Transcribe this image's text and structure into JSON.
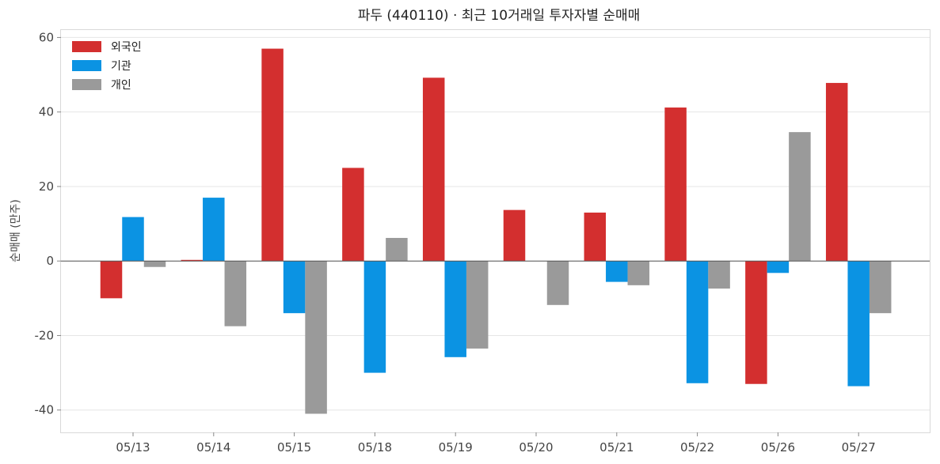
{
  "chart_data": {
    "type": "bar",
    "title": "파두 (440110) · 최근 10거래일 투자자별 순매매",
    "xlabel": "",
    "ylabel": "순매매 (만주)",
    "categories": [
      "05/13",
      "05/14",
      "05/15",
      "05/18",
      "05/19",
      "05/20",
      "05/21",
      "05/22",
      "05/26",
      "05/27"
    ],
    "series": [
      {
        "name": "외국인",
        "color": "#d32f2f",
        "values": [
          -10.0,
          0.3,
          57.0,
          25.0,
          49.2,
          13.7,
          13.0,
          41.2,
          -33.0,
          47.8
        ]
      },
      {
        "name": "기관",
        "color": "#0b93e3",
        "values": [
          11.8,
          17.0,
          -14.0,
          -30.0,
          -25.8,
          0.0,
          -5.6,
          -32.8,
          -3.2,
          -33.6
        ]
      },
      {
        "name": "개인",
        "color": "#9a9a9a",
        "values": [
          -1.6,
          -17.5,
          -41.0,
          6.2,
          -23.5,
          -11.8,
          -6.5,
          -7.4,
          34.6,
          -14.0
        ]
      }
    ],
    "ylim": [
      -46,
      62
    ],
    "yticks": [
      -40,
      -20,
      0,
      20,
      40,
      60
    ],
    "grid": true,
    "legend_position": "top-left"
  }
}
